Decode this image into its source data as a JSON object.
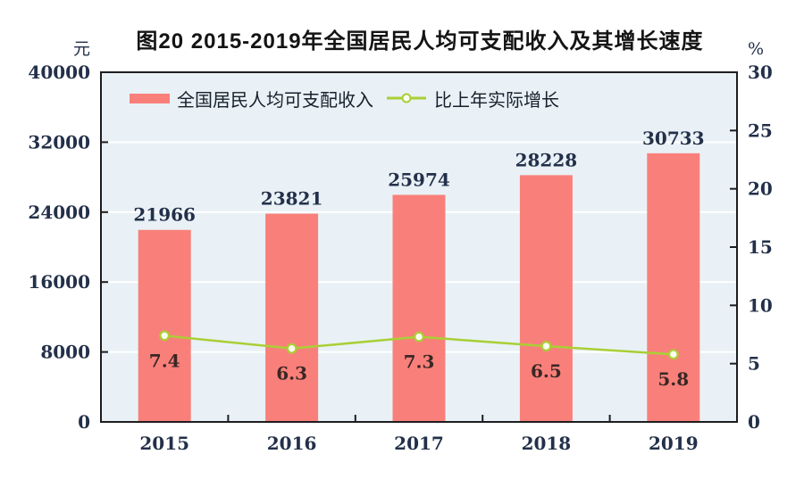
{
  "figure": {
    "title": "图20  2015-2019年全国居民人均可支配收入及其增长速度",
    "left_axis_unit": "元",
    "right_axis_unit": "%"
  },
  "legend": {
    "bar_item": "全国居民人均可支配收入",
    "line_item": "比上年实际增长"
  },
  "chart_data": {
    "type": "bar",
    "title": "图20  2015-2019年全国居民人均可支配收入及其增长速度",
    "categories": [
      "2015",
      "2016",
      "2017",
      "2018",
      "2019"
    ],
    "series": [
      {
        "name": "全国居民人均可支配收入",
        "type": "bar",
        "axis": "left",
        "unit": "元",
        "values": [
          21966,
          23821,
          25974,
          28228,
          30733
        ]
      },
      {
        "name": "比上年实际增长",
        "type": "line",
        "axis": "right",
        "unit": "%",
        "values": [
          7.4,
          6.3,
          7.3,
          6.5,
          5.8
        ]
      }
    ],
    "left_axis": {
      "unit": "元",
      "min": 0,
      "max": 40000,
      "step": 8000,
      "tick_labels": [
        "0",
        "8000",
        "16000",
        "24000",
        "32000",
        "40000"
      ]
    },
    "right_axis": {
      "unit": "%",
      "min": 0,
      "max": 30,
      "step": 5,
      "tick_labels": [
        "0",
        "5",
        "10",
        "15",
        "20",
        "25",
        "30"
      ]
    },
    "grid": "horizontal-white-lines",
    "legend_position": "top-inside"
  },
  "colors": {
    "bar": "#f9807a",
    "line": "#a9cf35",
    "marker_fill": "#fbfdee",
    "panel_bg": "#e9f1f6",
    "gridline": "#ffffff",
    "frame": "#1d1d1f",
    "tick_label": "#23304a",
    "bar_value_label": "#23304a",
    "growth_value_label": "#3a2725",
    "title": "#141414"
  }
}
